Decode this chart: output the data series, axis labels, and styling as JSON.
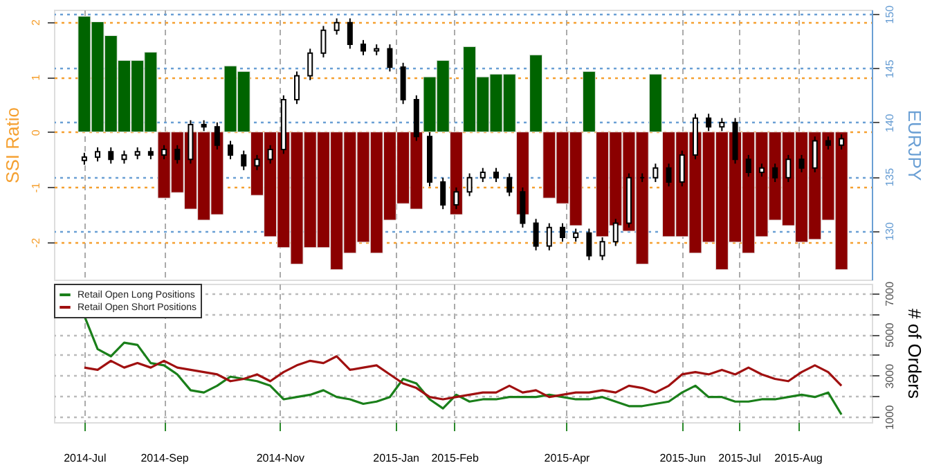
{
  "chart_data": [
    {
      "type": "bar",
      "ylabel": "SSI Ratio",
      "y2label": "EURJPY",
      "tick_labels": "y",
      "grid": true,
      "xlim": [
        "2014-07-05",
        "2015-09-09"
      ],
      "xticks": [
        {
          "value": "2014-07-21",
          "label": null
        },
        {
          "value": "2014-09-01",
          "label": null
        },
        {
          "value": "2014-11-01",
          "label": null
        },
        {
          "value": "2015-01-01",
          "label": null
        },
        {
          "value": "2015-02-01",
          "label": null
        },
        {
          "value": "2015-04-01",
          "label": null
        },
        {
          "value": "2015-06-01",
          "label": null
        },
        {
          "value": "2015-07-01",
          "label": null
        },
        {
          "value": "2015-08-01",
          "label": null
        }
      ],
      "ylim": [
        -2.68,
        2.22
      ],
      "yticks": [
        -2,
        -1,
        0,
        1,
        2
      ],
      "y2lim": [
        125.5,
        150.4
      ],
      "y2ticks": [
        130,
        135,
        140,
        145,
        150
      ],
      "x": [
        "2014-07-21",
        "2014-07-28",
        "2014-08-04",
        "2014-08-11",
        "2014-08-18",
        "2014-08-25",
        "2014-09-01",
        "2014-09-08",
        "2014-09-15",
        "2014-09-22",
        "2014-09-29",
        "2014-10-06",
        "2014-10-13",
        "2014-10-20",
        "2014-10-27",
        "2014-11-03",
        "2014-11-10",
        "2014-11-17",
        "2014-11-24",
        "2014-12-01",
        "2014-12-08",
        "2014-12-15",
        "2014-12-22",
        "2014-12-29",
        "2015-01-05",
        "2015-01-12",
        "2015-01-19",
        "2015-01-26",
        "2015-02-02",
        "2015-02-09",
        "2015-02-16",
        "2015-02-23",
        "2015-03-02",
        "2015-03-09",
        "2015-03-16",
        "2015-03-23",
        "2015-03-30",
        "2015-04-06",
        "2015-04-13",
        "2015-04-20",
        "2015-04-27",
        "2015-05-04",
        "2015-05-11",
        "2015-05-18",
        "2015-05-25",
        "2015-06-01",
        "2015-06-08",
        "2015-06-15",
        "2015-06-22",
        "2015-06-29",
        "2015-07-06",
        "2015-07-13",
        "2015-07-20",
        "2015-07-27",
        "2015-08-03",
        "2015-08-10",
        "2015-08-17",
        "2015-08-24"
      ],
      "series": [
        {
          "type": "bar",
          "values": [
            2.1,
            2.0,
            1.75,
            1.3,
            1.3,
            1.45,
            -1.2,
            -1.1,
            -1.4,
            -1.6,
            -1.5,
            1.2,
            1.1,
            -1.15,
            -1.9,
            -2.1,
            -2.4,
            -2.1,
            -2.1,
            -2.5,
            -2.2,
            -2.0,
            -2.2,
            -1.6,
            -1.3,
            -1.4,
            1.0,
            1.3,
            -1.5,
            1.55,
            1.0,
            1.05,
            1.05,
            -1.5,
            1.4,
            -1.2,
            -1.3,
            -1.7,
            1.1,
            -1.9,
            -1.7,
            -1.8,
            -2.4,
            1.05,
            -1.9,
            -1.9,
            -2.2,
            -2.0,
            -2.5,
            -2.0,
            -2.2,
            -1.9,
            -1.6,
            -1.7,
            -2.0,
            -1.95,
            -1.6,
            -2.5
          ],
          "colors": [
            "#006400",
            "#006400",
            "#006400",
            "#006400",
            "#006400",
            "#006400",
            "#8b0000",
            "#8b0000",
            "#8b0000",
            "#8b0000",
            "#8b0000",
            "#006400",
            "#006400",
            "#8b0000",
            "#8b0000",
            "#8b0000",
            "#8b0000",
            "#8b0000",
            "#8b0000",
            "#8b0000",
            "#8b0000",
            "#8b0000",
            "#8b0000",
            "#8b0000",
            "#8b0000",
            "#8b0000",
            "#006400",
            "#006400",
            "#8b0000",
            "#006400",
            "#006400",
            "#006400",
            "#006400",
            "#8b0000",
            "#006400",
            "#8b0000",
            "#8b0000",
            "#8b0000",
            "#006400",
            "#8b0000",
            "#8b0000",
            "#8b0000",
            "#8b0000",
            "#006400",
            "#8b0000",
            "#8b0000",
            "#8b0000",
            "#8b0000",
            "#8b0000",
            "#8b0000",
            "#8b0000",
            "#8b0000",
            "#8b0000",
            "#8b0000",
            "#8b0000",
            "#8b0000",
            "#8b0000",
            "#8b0000"
          ]
        },
        {
          "type": "candlestick",
          "axis": "y2",
          "color": "#000000",
          "ohlc": [
            [
              136.5,
              137.2,
              136.1,
              136.8
            ],
            [
              136.8,
              137.7,
              136.4,
              137.3
            ],
            [
              137.3,
              137.7,
              136.2,
              136.6
            ],
            [
              136.6,
              137.4,
              136.2,
              137.0
            ],
            [
              137.0,
              137.7,
              136.6,
              137.3
            ],
            [
              137.3,
              137.7,
              136.6,
              137.0
            ],
            [
              137.0,
              137.9,
              136.6,
              137.5
            ],
            [
              137.5,
              137.9,
              136.2,
              136.6
            ],
            [
              136.6,
              140.2,
              136.2,
              139.8
            ],
            [
              139.8,
              140.2,
              139.2,
              139.6
            ],
            [
              139.6,
              140.0,
              137.5,
              137.9
            ],
            [
              137.9,
              138.3,
              136.6,
              137.0
            ],
            [
              137.0,
              137.4,
              135.6,
              136.0
            ],
            [
              136.0,
              137.0,
              135.6,
              136.6
            ],
            [
              136.6,
              137.9,
              136.2,
              137.5
            ],
            [
              137.5,
              142.5,
              137.1,
              142.1
            ],
            [
              142.1,
              144.7,
              141.7,
              144.3
            ],
            [
              144.3,
              146.8,
              143.9,
              146.4
            ],
            [
              146.4,
              148.9,
              146.0,
              148.5
            ],
            [
              148.5,
              149.6,
              148.1,
              149.2
            ],
            [
              149.2,
              149.6,
              146.8,
              147.2
            ],
            [
              147.2,
              147.6,
              146.2,
              146.6
            ],
            [
              146.6,
              147.2,
              146.2,
              146.8
            ],
            [
              146.8,
              147.2,
              144.7,
              145.1
            ],
            [
              145.1,
              145.5,
              141.7,
              142.1
            ],
            [
              142.1,
              142.5,
              138.3,
              138.7
            ],
            [
              138.7,
              139.1,
              134.1,
              134.5
            ],
            [
              134.5,
              134.9,
              132.0,
              132.4
            ],
            [
              132.4,
              134.0,
              132.0,
              133.6
            ],
            [
              133.6,
              135.3,
              133.2,
              134.9
            ],
            [
              134.9,
              135.8,
              134.5,
              135.4
            ],
            [
              135.4,
              135.8,
              134.5,
              134.9
            ],
            [
              134.9,
              135.3,
              133.2,
              133.6
            ],
            [
              133.6,
              134.0,
              130.3,
              130.7
            ],
            [
              130.7,
              131.1,
              128.2,
              128.6
            ],
            [
              128.6,
              130.7,
              128.2,
              130.3
            ],
            [
              130.3,
              130.7,
              129.0,
              129.4
            ],
            [
              129.4,
              130.2,
              129.0,
              129.8
            ],
            [
              129.8,
              130.2,
              127.3,
              127.7
            ],
            [
              127.7,
              129.4,
              127.3,
              129.0
            ],
            [
              129.0,
              131.1,
              128.6,
              130.7
            ],
            [
              130.7,
              135.3,
              130.3,
              134.9
            ],
            [
              134.9,
              135.3,
              134.5,
              134.9
            ],
            [
              134.9,
              136.2,
              134.5,
              135.8
            ],
            [
              135.8,
              136.2,
              134.1,
              134.5
            ],
            [
              134.5,
              137.4,
              134.1,
              137.0
            ],
            [
              137.0,
              140.8,
              136.6,
              140.4
            ],
            [
              140.4,
              140.8,
              139.2,
              139.6
            ],
            [
              139.6,
              140.4,
              139.2,
              140.0
            ],
            [
              140.0,
              140.4,
              136.2,
              136.6
            ],
            [
              136.6,
              137.0,
              135.0,
              135.4
            ],
            [
              135.4,
              136.2,
              135.0,
              135.8
            ],
            [
              135.8,
              136.2,
              134.5,
              134.9
            ],
            [
              134.9,
              137.0,
              134.5,
              136.6
            ],
            [
              136.6,
              137.0,
              135.4,
              135.8
            ],
            [
              135.8,
              138.7,
              135.4,
              138.3
            ],
            [
              138.3,
              138.7,
              137.5,
              137.9
            ],
            [
              137.9,
              138.9,
              137.5,
              138.5
            ]
          ]
        }
      ]
    },
    {
      "type": "line",
      "y2label": "# of Orders",
      "grid": true,
      "legend": "top left",
      "xlim": [
        "2014-07-05",
        "2015-09-09"
      ],
      "xticks": [
        {
          "value": "2014-07-21",
          "label": "2014-Jul"
        },
        {
          "value": "2014-09-01",
          "label": "2014-Sep"
        },
        {
          "value": "2014-11-01",
          "label": "2014-Nov"
        },
        {
          "value": "2015-01-01",
          "label": "2015-Jan"
        },
        {
          "value": "2015-02-01",
          "label": "2015-Feb"
        },
        {
          "value": "2015-04-01",
          "label": "2015-Apr"
        },
        {
          "value": "2015-06-01",
          "label": "2015-Jun"
        },
        {
          "value": "2015-07-01",
          "label": "2015-Jul"
        },
        {
          "value": "2015-08-01",
          "label": "2015-Aug"
        }
      ],
      "y2lim": [
        740,
        7460
      ],
      "y2ticks": [
        1000,
        {
          "value": 2000,
          "label": null
        },
        3000,
        {
          "value": 4000,
          "label": null
        },
        5000,
        {
          "value": 6000,
          "label": null
        },
        7000
      ],
      "x": [
        "2014-07-21",
        "2014-07-28",
        "2014-08-04",
        "2014-08-11",
        "2014-08-18",
        "2014-08-25",
        "2014-09-01",
        "2014-09-08",
        "2014-09-15",
        "2014-09-22",
        "2014-09-29",
        "2014-10-06",
        "2014-10-13",
        "2014-10-20",
        "2014-10-27",
        "2014-11-03",
        "2014-11-10",
        "2014-11-17",
        "2014-11-24",
        "2014-12-01",
        "2014-12-08",
        "2014-12-15",
        "2014-12-22",
        "2014-12-29",
        "2015-01-05",
        "2015-01-12",
        "2015-01-19",
        "2015-01-26",
        "2015-02-02",
        "2015-02-09",
        "2015-02-16",
        "2015-02-23",
        "2015-03-02",
        "2015-03-09",
        "2015-03-16",
        "2015-03-23",
        "2015-03-30",
        "2015-04-06",
        "2015-04-13",
        "2015-04-20",
        "2015-04-27",
        "2015-05-04",
        "2015-05-11",
        "2015-05-18",
        "2015-05-25",
        "2015-06-01",
        "2015-06-08",
        "2015-06-15",
        "2015-06-22",
        "2015-06-29",
        "2015-07-06",
        "2015-07-13",
        "2015-07-20",
        "2015-07-27",
        "2015-08-03",
        "2015-08-10",
        "2015-08-17",
        "2015-08-24"
      ],
      "series": [
        {
          "name": "Retail Open Long Positions",
          "color": "#1a7f1a",
          "axis": "y2",
          "values": [
            5900,
            4290,
            3940,
            4600,
            4490,
            3610,
            3500,
            3060,
            2290,
            2180,
            2510,
            2950,
            2840,
            2730,
            2510,
            1850,
            1960,
            2070,
            2290,
            1960,
            1850,
            1630,
            1740,
            1960,
            2840,
            2620,
            1850,
            1410,
            2070,
            1740,
            1850,
            1850,
            1960,
            1960,
            1960,
            2070,
            1960,
            1850,
            1850,
            1960,
            1740,
            1520,
            1520,
            1630,
            1740,
            2180,
            2510,
            1960,
            1960,
            1740,
            1740,
            1850,
            1850,
            1960,
            2070,
            1960,
            2180,
            1110
          ]
        },
        {
          "name": "Retail Open Short Positions",
          "color": "#a01010",
          "axis": "y2",
          "values": [
            3390,
            3280,
            3720,
            3390,
            3610,
            3390,
            3720,
            3390,
            3280,
            3170,
            3060,
            2730,
            2840,
            3060,
            2730,
            3170,
            3500,
            3720,
            3610,
            3940,
            3280,
            3390,
            3500,
            3060,
            2620,
            2400,
            1960,
            1850,
            1960,
            2070,
            2180,
            2180,
            2510,
            2180,
            2290,
            1960,
            2070,
            2180,
            2180,
            2290,
            2180,
            2510,
            2400,
            2180,
            2510,
            3060,
            3170,
            3060,
            3280,
            3060,
            3390,
            3060,
            2840,
            2730,
            3170,
            3500,
            3170,
            2510
          ]
        }
      ]
    }
  ]
}
